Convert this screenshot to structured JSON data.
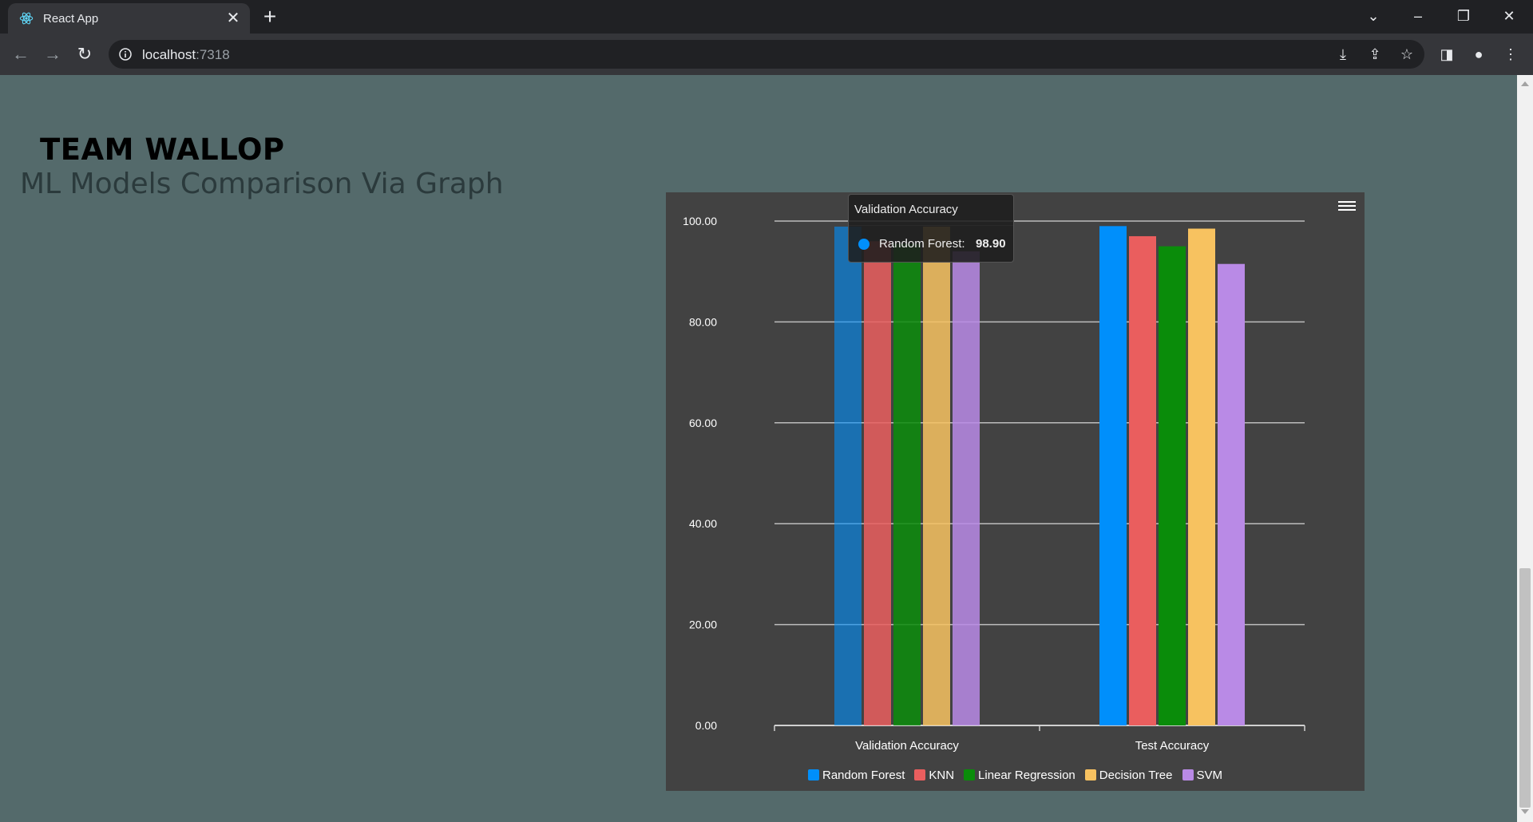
{
  "browser": {
    "tab_title": "React App",
    "tab_close": "✕",
    "new_tab": "+",
    "url_host": "localhost",
    "url_port": ":7318",
    "icons": [
      "react-logo-icon",
      "back-icon",
      "forward-icon",
      "reload-icon",
      "info-icon",
      "install-icon",
      "share-icon",
      "star-icon",
      "sidepanel-icon",
      "profile-icon",
      "more-icon"
    ]
  },
  "page": {
    "team": "TEAM WALLOP",
    "subtitle": "ML Models Comparison Via Graph"
  },
  "tooltip": {
    "title": "Validation Accuracy",
    "series": "Random Forest:",
    "value": "98.90"
  },
  "chart_data": {
    "type": "bar",
    "categories": [
      "Validation Accuracy",
      "Test Accuracy"
    ],
    "series": [
      {
        "name": "Random Forest",
        "color": "#008ffb",
        "values": [
          98.9,
          99.0
        ]
      },
      {
        "name": "KNN",
        "color": "#ea5e5e",
        "values": [
          96.0,
          97.0
        ]
      },
      {
        "name": "Linear Regression",
        "color": "#0a8c0a",
        "values": [
          95.5,
          95.0
        ]
      },
      {
        "name": "Decision Tree",
        "color": "#f7c260",
        "values": [
          98.9,
          98.5
        ]
      },
      {
        "name": "SVM",
        "color": "#b98ae6",
        "values": [
          94.0,
          91.5
        ]
      }
    ],
    "highlight": {
      "category": 0,
      "series": 0
    },
    "ylim": [
      0,
      100
    ],
    "yticks": [
      "0.00",
      "20.00",
      "40.00",
      "60.00",
      "80.00",
      "100.00"
    ],
    "grid": true,
    "legend": "bottom"
  }
}
